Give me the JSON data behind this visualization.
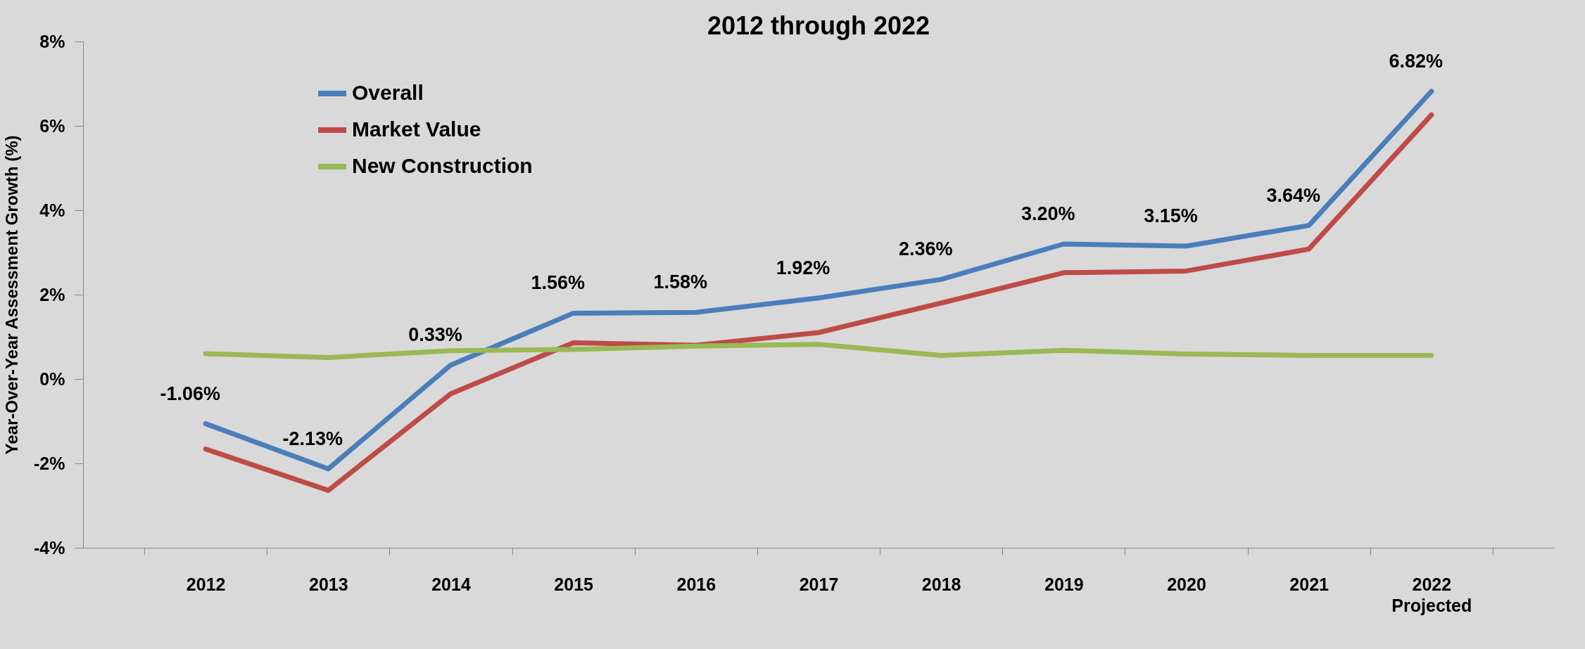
{
  "chart_data": {
    "type": "line",
    "title": "2012 through 2022",
    "ylabel": "Year-Over-Year Assessment Growth (%)",
    "categories": [
      "2012",
      "2013",
      "2014",
      "2015",
      "2016",
      "2017",
      "2018",
      "2019",
      "2020",
      "2021",
      "2022\nProjected"
    ],
    "series": [
      {
        "name": "Overall",
        "color": "#4a7ebb",
        "values": [
          -1.06,
          -2.13,
          0.33,
          1.56,
          1.58,
          1.92,
          2.36,
          3.2,
          3.15,
          3.64,
          6.82
        ],
        "value_labels": [
          "-1.06%",
          "-2.13%",
          "0.33%",
          "1.56%",
          "1.58%",
          "1.92%",
          "2.36%",
          "3.20%",
          "3.15%",
          "3.64%",
          "6.82%"
        ]
      },
      {
        "name": "Market Value",
        "color": "#be4b48",
        "values": [
          -1.66,
          -2.64,
          -0.35,
          0.86,
          0.8,
          1.1,
          1.8,
          2.52,
          2.56,
          3.08,
          6.26
        ]
      },
      {
        "name": "New Construction",
        "color": "#98b954",
        "values": [
          0.6,
          0.51,
          0.67,
          0.7,
          0.78,
          0.82,
          0.56,
          0.68,
          0.59,
          0.56,
          0.56
        ]
      }
    ],
    "ylim": [
      -4,
      8
    ],
    "yticks": [
      {
        "value": -4,
        "label": "-4%"
      },
      {
        "value": -2,
        "label": "-2%"
      },
      {
        "value": 0,
        "label": "0%"
      },
      {
        "value": 2,
        "label": "2%"
      },
      {
        "value": 4,
        "label": "4%"
      },
      {
        "value": 6,
        "label": "6%"
      },
      {
        "value": 8,
        "label": "8%"
      }
    ],
    "legend": "top left",
    "grid": false,
    "marker": "none",
    "line_style": "solid"
  }
}
